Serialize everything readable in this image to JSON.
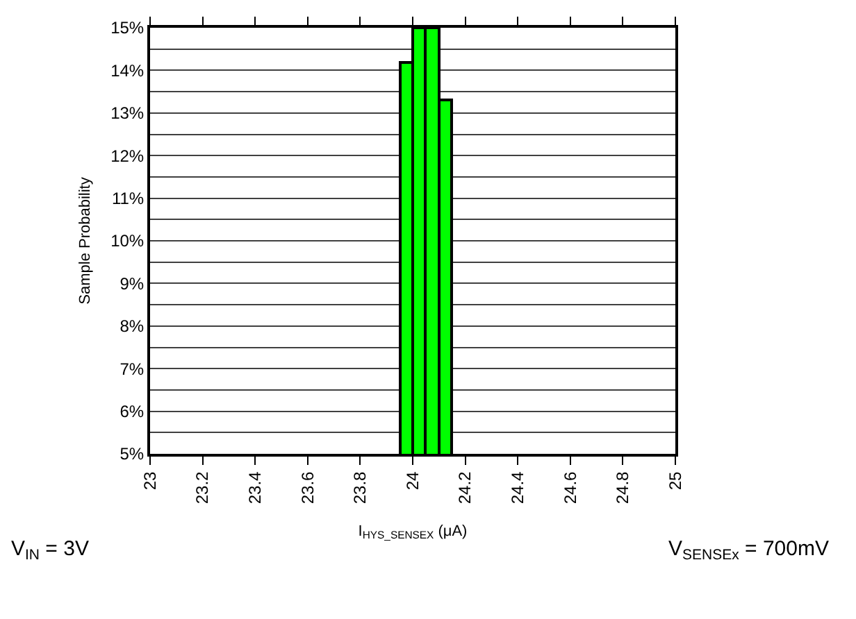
{
  "chart_data": {
    "type": "histogram",
    "xlabel": "I$_{HYS_SENSEX}$ (μA)",
    "ylabel": "Sample Probability",
    "bins": [
      23.95,
      24.0,
      24.05,
      24.1,
      24.15
    ],
    "values": [
      14.2,
      15,
      15,
      13.3
    ],
    "color": "#00ff00",
    "xlim": [
      23,
      25
    ],
    "xticks": [
      23,
      23.2,
      23.4,
      23.6,
      23.8,
      24,
      24.2,
      24.4,
      24.6,
      24.8,
      25
    ],
    "ylim": [
      5,
      15
    ],
    "yticks": [
      {
        "value": 5,
        "label": "5%"
      },
      {
        "value": 5.5,
        "label": null
      },
      {
        "value": 6,
        "label": "6%"
      },
      {
        "value": 6.5,
        "label": null
      },
      {
        "value": 7,
        "label": "7%"
      },
      {
        "value": 7.5,
        "label": null
      },
      {
        "value": 8,
        "label": "8%"
      },
      {
        "value": 8.5,
        "label": null
      },
      {
        "value": 9,
        "label": "9%"
      },
      {
        "value": 9.5,
        "label": null
      },
      {
        "value": 10,
        "label": "10%"
      },
      {
        "value": 10.5,
        "label": null
      },
      {
        "value": 11,
        "label": "11%"
      },
      {
        "value": 11.5,
        "label": null
      },
      {
        "value": 12,
        "label": "12%"
      },
      {
        "value": 12.5,
        "label": null
      },
      {
        "value": 13,
        "label": "13%"
      },
      {
        "value": 13.5,
        "label": null
      },
      {
        "value": 14,
        "label": "14%"
      },
      {
        "value": 14.5,
        "label": null
      },
      {
        "value": 15,
        "label": "15%"
      }
    ],
    "grid": "y",
    "annotations": [
      "V$_{IN}$ = 3V",
      "V$_{SENSEx}$ = 700mV"
    ]
  }
}
